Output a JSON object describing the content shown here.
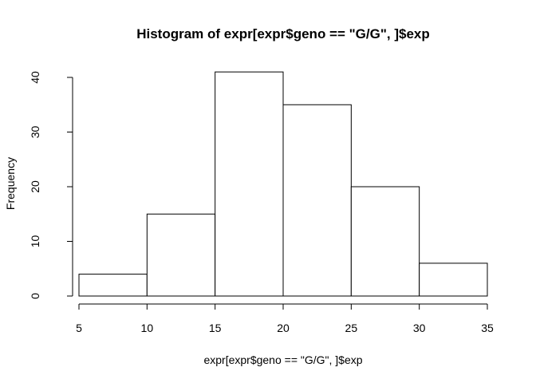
{
  "chart_data": {
    "type": "bar",
    "title": "Histogram of expr[expr$geno == \"G/G\", ]$exp",
    "xlabel": "expr[expr$geno == \"G/G\", ]$exp",
    "ylabel": "Frequency",
    "bins": [
      {
        "start": 5,
        "end": 10,
        "count": 4
      },
      {
        "start": 10,
        "end": 15,
        "count": 15
      },
      {
        "start": 15,
        "end": 20,
        "count": 41
      },
      {
        "start": 20,
        "end": 25,
        "count": 35
      },
      {
        "start": 25,
        "end": 30,
        "count": 20
      },
      {
        "start": 30,
        "end": 35,
        "count": 6
      }
    ],
    "xlim": [
      5,
      35
    ],
    "ylim": [
      0,
      41
    ],
    "xticks": [
      5,
      10,
      15,
      20,
      25,
      30,
      35
    ],
    "yticks": [
      0,
      10,
      20,
      30,
      40
    ],
    "grid": false,
    "colors": {
      "bar_fill": "#ffffff",
      "bar_stroke": "#000000"
    }
  }
}
